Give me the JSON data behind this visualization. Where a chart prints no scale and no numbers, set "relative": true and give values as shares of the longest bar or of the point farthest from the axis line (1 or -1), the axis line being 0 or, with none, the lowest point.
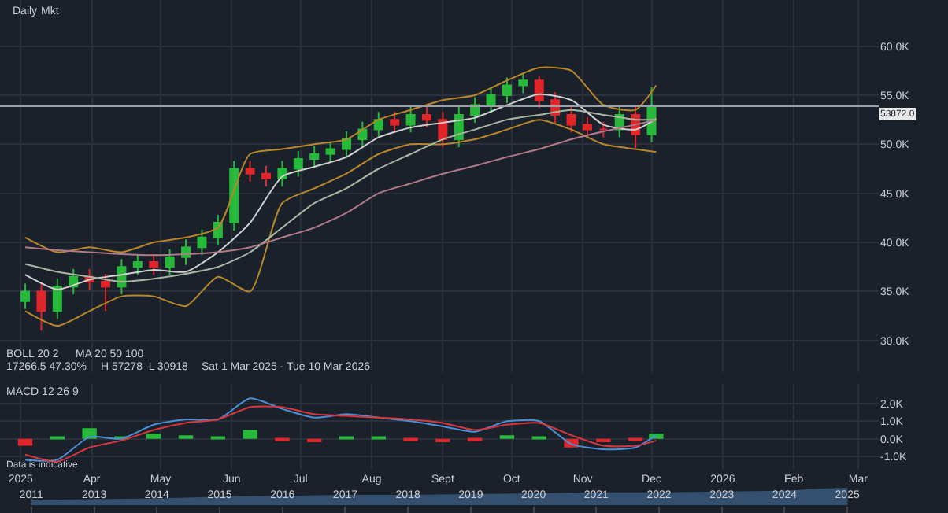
{
  "chart_data": [
    {
      "type": "candlestick",
      "annotations": [
        "Daily",
        "Mkt",
        "BOLL 20 2",
        "MA 20 50 100",
        "17266.5 47.30%",
        "H 57278  L 30918",
        "Sat 1 Mar 2025 - Tue 10 Mar 2026"
      ],
      "x": [
        "2025-03-03",
        "2025-03-10",
        "2025-03-17",
        "2025-03-24",
        "2025-03-31",
        "2025-04-07",
        "2025-04-14",
        "2025-04-21",
        "2025-04-28",
        "2025-05-05",
        "2025-05-12",
        "2025-05-19",
        "2025-05-26",
        "2025-06-02",
        "2025-06-09",
        "2025-06-16",
        "2025-06-23",
        "2025-06-30",
        "2025-07-07",
        "2025-07-14",
        "2025-07-21",
        "2025-07-28",
        "2025-08-04",
        "2025-08-11",
        "2025-08-18",
        "2025-08-25",
        "2025-09-01",
        "2025-09-08",
        "2025-09-15",
        "2025-09-22",
        "2025-09-29",
        "2025-10-06",
        "2025-10-13",
        "2025-10-20",
        "2025-10-27",
        "2025-11-03",
        "2025-11-10",
        "2025-11-17",
        "2025-11-24",
        "2025-12-01"
      ],
      "ohlc": [
        [
          34000,
          35800,
          33200,
          35000
        ],
        [
          35000,
          35800,
          31000,
          33000
        ],
        [
          33000,
          36300,
          32200,
          35500
        ],
        [
          35500,
          37300,
          34700,
          36500
        ],
        [
          36500,
          37300,
          35200,
          36000
        ],
        [
          36000,
          36800,
          33000,
          35500
        ],
        [
          35500,
          38300,
          34700,
          37500
        ],
        [
          37500,
          38800,
          36700,
          38000
        ],
        [
          38000,
          38800,
          36700,
          37500
        ],
        [
          37500,
          39300,
          36700,
          38500
        ],
        [
          38500,
          40300,
          37700,
          39500
        ],
        [
          39500,
          41300,
          38700,
          40500
        ],
        [
          40500,
          42800,
          39700,
          42000
        ],
        [
          42000,
          48300,
          41200,
          47500
        ],
        [
          47500,
          48300,
          46200,
          47000
        ],
        [
          47000,
          47800,
          45700,
          46500
        ],
        [
          46500,
          48300,
          45700,
          47500
        ],
        [
          47500,
          49300,
          46700,
          48500
        ],
        [
          48500,
          49800,
          47700,
          49000
        ],
        [
          49000,
          50300,
          48200,
          49500
        ],
        [
          49500,
          51300,
          48700,
          50500
        ],
        [
          50500,
          52300,
          49700,
          51500
        ],
        [
          51500,
          53300,
          50700,
          52500
        ],
        [
          52500,
          53300,
          51200,
          52000
        ],
        [
          52000,
          53800,
          51200,
          53000
        ],
        [
          53000,
          53800,
          51700,
          52500
        ],
        [
          52500,
          53300,
          49700,
          50500
        ],
        [
          50500,
          53800,
          49700,
          53000
        ],
        [
          53000,
          54800,
          52200,
          54000
        ],
        [
          54000,
          55800,
          53200,
          55000
        ],
        [
          55000,
          56800,
          54200,
          56000
        ],
        [
          56000,
          57278,
          55200,
          56500
        ],
        [
          56500,
          57000,
          53700,
          54500
        ],
        [
          54500,
          55300,
          52200,
          53000
        ],
        [
          53000,
          53800,
          51200,
          52000
        ],
        [
          52000,
          52800,
          50700,
          51500
        ],
        [
          51500,
          52300,
          50700,
          51500
        ],
        [
          51500,
          53800,
          50700,
          53000
        ],
        [
          53000,
          53800,
          49600,
          51000
        ],
        [
          51000,
          55800,
          50200,
          53872
        ]
      ],
      "colors": [
        "#26b93a",
        "#e0262b",
        "#26b93a",
        "#26b93a",
        "#e0262b",
        "#e0262b",
        "#26b93a",
        "#26b93a",
        "#e0262b",
        "#26b93a",
        "#26b93a",
        "#26b93a",
        "#26b93a",
        "#26b93a",
        "#e0262b",
        "#e0262b",
        "#26b93a",
        "#26b93a",
        "#26b93a",
        "#26b93a",
        "#26b93a",
        "#26b93a",
        "#26b93a",
        "#e0262b",
        "#26b93a",
        "#e0262b",
        "#e0262b",
        "#26b93a",
        "#26b93a",
        "#26b93a",
        "#26b93a",
        "#26b93a",
        "#e0262b",
        "#e0262b",
        "#e0262b",
        "#e0262b",
        "#e0262b",
        "#26b93a",
        "#e0262b",
        "#26b93a"
      ],
      "series": [
        {
          "type": "line",
          "color": "#b8862b",
          "x": [
            "2025-03-03",
            "2025-03-17",
            "2025-03-31",
            "2025-04-14",
            "2025-04-28",
            "2025-05-12",
            "2025-05-26",
            "2025-06-09",
            "2025-06-23",
            "2025-07-07",
            "2025-07-21",
            "2025-08-04",
            "2025-08-18",
            "2025-09-01",
            "2025-09-15",
            "2025-09-29",
            "2025-10-13",
            "2025-10-27",
            "2025-11-10",
            "2025-11-24",
            "2025-12-03"
          ],
          "values": [
            40500,
            39000,
            39500,
            39000,
            40000,
            40500,
            41500,
            49000,
            49500,
            50000,
            50500,
            52500,
            53500,
            54500,
            55000,
            56500,
            57800,
            57500,
            54000,
            53500,
            56000
          ]
        },
        {
          "type": "line",
          "color": "#b8862b",
          "x": [
            "2025-03-03",
            "2025-03-17",
            "2025-03-31",
            "2025-04-14",
            "2025-04-28",
            "2025-05-12",
            "2025-05-26",
            "2025-06-09",
            "2025-06-23",
            "2025-07-07",
            "2025-07-21",
            "2025-08-04",
            "2025-08-18",
            "2025-09-01",
            "2025-09-15",
            "2025-09-29",
            "2025-10-13",
            "2025-10-27",
            "2025-11-10",
            "2025-11-24",
            "2025-12-03"
          ],
          "values": [
            33000,
            31500,
            33000,
            34500,
            34500,
            33500,
            36500,
            35000,
            44000,
            45500,
            47000,
            49000,
            50000,
            50000,
            50500,
            51500,
            52500,
            51500,
            50000,
            49500,
            49200
          ]
        },
        {
          "type": "line",
          "color": "#d0d0d0",
          "x": [
            "2025-03-03",
            "2025-03-17",
            "2025-03-31",
            "2025-04-14",
            "2025-04-28",
            "2025-05-12",
            "2025-05-26",
            "2025-06-09",
            "2025-06-23",
            "2025-07-07",
            "2025-07-21",
            "2025-08-04",
            "2025-08-18",
            "2025-09-01",
            "2025-09-15",
            "2025-09-29",
            "2025-10-13",
            "2025-10-27",
            "2025-11-10",
            "2025-11-24",
            "2025-12-03"
          ],
          "values": [
            36700,
            35200,
            36200,
            36700,
            37200,
            37000,
            39000,
            42000,
            46700,
            47700,
            48700,
            50700,
            51700,
            52200,
            52700,
            54000,
            55100,
            54500,
            52000,
            51500,
            52600
          ]
        },
        {
          "type": "line",
          "color": "#a9b8a4",
          "x": [
            "2025-03-03",
            "2025-03-17",
            "2025-03-31",
            "2025-04-14",
            "2025-04-28",
            "2025-05-12",
            "2025-05-26",
            "2025-06-09",
            "2025-06-23",
            "2025-07-07",
            "2025-07-21",
            "2025-08-04",
            "2025-08-18",
            "2025-09-01",
            "2025-09-15",
            "2025-09-29",
            "2025-10-13",
            "2025-10-27",
            "2025-11-10",
            "2025-11-24",
            "2025-12-03"
          ],
          "values": [
            37800,
            37000,
            36500,
            36000,
            36300,
            36800,
            37500,
            39000,
            41500,
            44000,
            45500,
            47500,
            49000,
            50500,
            51500,
            52500,
            53000,
            53500,
            53000,
            52500,
            52500
          ]
        },
        {
          "type": "line",
          "color": "#b07a8a",
          "x": [
            "2025-03-03",
            "2025-03-17",
            "2025-03-31",
            "2025-04-14",
            "2025-04-28",
            "2025-05-12",
            "2025-05-26",
            "2025-06-09",
            "2025-06-23",
            "2025-07-07",
            "2025-07-21",
            "2025-08-04",
            "2025-08-18",
            "2025-09-01",
            "2025-09-15",
            "2025-09-29",
            "2025-10-13",
            "2025-10-27",
            "2025-11-10",
            "2025-11-24",
            "2025-12-03"
          ],
          "values": [
            39500,
            39200,
            39000,
            38800,
            38700,
            38800,
            39000,
            39500,
            40500,
            41500,
            43000,
            45000,
            46000,
            47000,
            47800,
            48700,
            49500,
            50500,
            51300,
            52000,
            52500
          ]
        }
      ],
      "ref_lines": [
        {
          "axis": "y",
          "value": 53872,
          "label": "53872.0",
          "color": "#9aa0a8"
        }
      ],
      "xlim": [
        "2025-02-20",
        "2026-03-10"
      ],
      "xticks": [
        {
          "value": "2025-03-01",
          "label": null
        },
        {
          "value": "2025-04-01",
          "label": null
        },
        {
          "value": "2025-05-01",
          "label": null
        },
        {
          "value": "2025-06-01",
          "label": null
        },
        {
          "value": "2025-07-01",
          "label": null
        },
        {
          "value": "2025-08-01",
          "label": null
        },
        {
          "value": "2025-09-01",
          "label": null
        },
        {
          "value": "2025-10-01",
          "label": null
        },
        {
          "value": "2025-11-01",
          "label": null
        },
        {
          "value": "2025-12-01",
          "label": null
        },
        {
          "value": "2026-01-01",
          "label": null
        },
        {
          "value": "2026-02-01",
          "label": null
        },
        {
          "value": "2026-03-01",
          "label": null
        }
      ],
      "ylim": [
        26800,
        64700
      ],
      "yticks": [
        {
          "value": 30000,
          "label": "30.0K"
        },
        {
          "value": 35000,
          "label": "35.0K"
        },
        {
          "value": 40000,
          "label": "40.0K"
        },
        {
          "value": 45000,
          "label": "45.0K"
        },
        {
          "value": 50000,
          "label": "50.0K"
        },
        {
          "value": 55000,
          "label": "55.0K"
        },
        {
          "value": 60000,
          "label": "60.0K"
        }
      ],
      "tick_labels": "y",
      "grid": true
    },
    {
      "type": "line",
      "annotations": [
        "MACD 12 26 9",
        "Data is indicative"
      ],
      "x": [
        "2025-03-03",
        "2025-03-17",
        "2025-03-31",
        "2025-04-14",
        "2025-04-28",
        "2025-05-12",
        "2025-05-26",
        "2025-06-09",
        "2025-06-23",
        "2025-07-07",
        "2025-07-21",
        "2025-08-04",
        "2025-08-18",
        "2025-09-01",
        "2025-09-15",
        "2025-09-29",
        "2025-10-13",
        "2025-10-27",
        "2025-11-10",
        "2025-11-24",
        "2025-12-03"
      ],
      "series": [
        {
          "type": "bar",
          "colors": [
            "#e0262b",
            "#26b93a",
            "#26b93a",
            "#26b93a",
            "#26b93a",
            "#26b93a",
            "#26b93a",
            "#26b93a",
            "#e0262b",
            "#e0262b",
            "#26b93a",
            "#26b93a",
            "#e0262b",
            "#e0262b",
            "#e0262b",
            "#26b93a",
            "#26b93a",
            "#e0262b",
            "#e0262b",
            "#e0262b",
            "#26b93a"
          ],
          "values": [
            -400,
            100,
            600,
            100,
            300,
            200,
            100,
            500,
            -100,
            -200,
            100,
            100,
            -100,
            -200,
            -100,
            200,
            100,
            -500,
            -200,
            -100,
            300
          ]
        },
        {
          "type": "line",
          "color": "#4a90d9",
          "values": [
            -1200,
            -1200,
            100,
            0,
            800,
            1100,
            1100,
            2300,
            1700,
            1200,
            1400,
            1200,
            1000,
            700,
            400,
            1000,
            1000,
            -300,
            -600,
            -500,
            200
          ]
        },
        {
          "type": "line",
          "color": "#d9363e",
          "values": [
            -900,
            -1300,
            -500,
            -100,
            500,
            900,
            1100,
            1800,
            1800,
            1400,
            1300,
            1200,
            1100,
            900,
            500,
            800,
            900,
            200,
            -400,
            -400,
            -100
          ]
        }
      ],
      "xlim": [
        "2025-02-20",
        "2026-03-10"
      ],
      "xticks": [
        {
          "value": "2025-03-01",
          "label": "2025"
        },
        {
          "value": "2025-04-01",
          "label": "Apr"
        },
        {
          "value": "2025-05-01",
          "label": "May"
        },
        {
          "value": "2025-06-01",
          "label": "Jun"
        },
        {
          "value": "2025-07-01",
          "label": "Jul"
        },
        {
          "value": "2025-08-01",
          "label": "Aug"
        },
        {
          "value": "2025-09-01",
          "label": "Sept"
        },
        {
          "value": "2025-10-01",
          "label": "Oct"
        },
        {
          "value": "2025-11-01",
          "label": "Nov"
        },
        {
          "value": "2025-12-01",
          "label": "Dec"
        },
        {
          "value": "2026-01-01",
          "label": "2026"
        },
        {
          "value": "2026-02-01",
          "label": "Feb"
        },
        {
          "value": "2026-03-01",
          "label": "Mar"
        }
      ],
      "ylim": [
        -1750,
        3100
      ],
      "yticks": [
        {
          "value": -1000,
          "label": "-1.0K"
        },
        {
          "value": 0,
          "label": "0.0K"
        },
        {
          "value": 1000,
          "label": "1.0K"
        },
        {
          "value": 2000,
          "label": "2.0K"
        }
      ],
      "grid": true
    },
    {
      "type": "area",
      "relative": true,
      "categories": [
        "2011",
        "2013",
        "2014",
        "2015",
        "2016",
        "2017",
        "2018",
        "2019",
        "2020",
        "2021",
        "2022",
        "2023",
        "2024",
        "2025"
      ],
      "values": [
        0.25,
        0.3,
        0.35,
        0.45,
        0.5,
        0.55,
        0.55,
        0.6,
        0.65,
        0.7,
        0.7,
        0.75,
        0.8,
        1.0
      ],
      "color": "#34506e",
      "grid": "x"
    }
  ]
}
